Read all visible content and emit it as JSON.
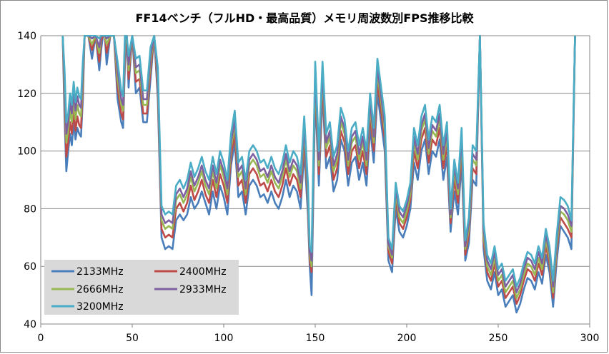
{
  "chart_data": {
    "type": "line",
    "title": "FF14ベンチ（フルHD・最高品質）メモリ周波数別FPS推移比較",
    "xlim": [
      0,
      300
    ],
    "ylim": [
      40,
      140
    ],
    "xticks": [
      0,
      50,
      100,
      150,
      200,
      250,
      300
    ],
    "yticks": [
      40,
      60,
      80,
      100,
      120,
      140
    ],
    "grid": "horizontal",
    "legend_position": "bottom-left",
    "x": [
      12,
      13,
      14,
      15,
      16,
      17,
      18,
      19,
      20,
      21,
      22,
      23,
      24,
      26,
      28,
      30,
      32,
      33,
      34,
      35,
      36,
      38,
      40,
      42,
      44,
      45,
      46,
      47,
      48,
      50,
      52,
      54,
      56,
      58,
      60,
      62,
      64,
      66,
      68,
      70,
      72,
      74,
      76,
      78,
      80,
      82,
      84,
      86,
      88,
      90,
      92,
      94,
      96,
      98,
      100,
      102,
      104,
      106,
      108,
      110,
      112,
      114,
      116,
      118,
      120,
      122,
      124,
      126,
      128,
      130,
      132,
      134,
      136,
      138,
      140,
      142,
      144,
      146,
      147,
      148,
      150,
      152,
      154,
      156,
      158,
      160,
      162,
      164,
      166,
      168,
      170,
      172,
      174,
      176,
      178,
      180,
      182,
      184,
      186,
      188,
      190,
      192,
      194,
      196,
      198,
      200,
      202,
      204,
      206,
      208,
      210,
      212,
      214,
      216,
      218,
      220,
      222,
      224,
      226,
      228,
      230,
      232,
      234,
      236,
      238,
      240,
      242,
      244,
      246,
      248,
      250,
      252,
      254,
      256,
      258,
      260,
      262,
      264,
      266,
      268,
      270,
      272,
      274,
      276,
      278,
      280,
      282,
      284,
      286,
      288,
      290,
      292
    ],
    "series": [
      {
        "name": "2133MHz",
        "color": "#4a7ebb",
        "values": [
          140,
          112,
          93,
          100,
          106,
          102,
          110,
          104,
          108,
          106,
          105,
          118,
          140,
          140,
          132,
          140,
          128,
          135,
          140,
          140,
          130,
          140,
          140,
          118,
          110,
          108,
          130,
          140,
          122,
          140,
          120,
          122,
          110,
          110,
          125,
          140,
          118,
          70,
          66,
          67,
          66,
          76,
          78,
          76,
          78,
          84,
          80,
          82,
          86,
          82,
          78,
          86,
          80,
          88,
          84,
          78,
          95,
          103,
          84,
          86,
          78,
          88,
          90,
          88,
          84,
          85,
          82,
          86,
          82,
          80,
          84,
          90,
          84,
          88,
          86,
          80,
          100,
          78,
          60,
          50,
          120,
          88,
          120,
          94,
          98,
          86,
          90,
          104,
          100,
          88,
          96,
          98,
          90,
          96,
          88,
          108,
          96,
          120,
          110,
          100,
          62,
          58,
          80,
          72,
          70,
          74,
          80,
          96,
          90,
          100,
          104,
          92,
          100,
          98,
          104,
          90,
          98,
          72,
          86,
          78,
          96,
          62,
          68,
          90,
          88,
          140,
          66,
          55,
          52,
          58,
          50,
          52,
          46,
          48,
          50,
          44,
          47,
          52,
          56,
          55,
          52,
          58,
          54,
          64,
          58,
          46,
          62,
          74,
          72,
          70,
          66,
          140
        ]
      },
      {
        "name": "2400MHz",
        "color": "#be4b48",
        "values": [
          140,
          118,
          98,
          103,
          110,
          106,
          114,
          107,
          112,
          109,
          108,
          122,
          140,
          140,
          135,
          140,
          131,
          138,
          140,
          140,
          134,
          140,
          140,
          122,
          113,
          111,
          134,
          140,
          125,
          140,
          124,
          125,
          113,
          113,
          128,
          140,
          121,
          73,
          70,
          71,
          70,
          80,
          82,
          79,
          82,
          88,
          83,
          86,
          90,
          85,
          82,
          90,
          84,
          92,
          88,
          82,
          98,
          106,
          88,
          90,
          82,
          92,
          94,
          92,
          88,
          89,
          86,
          90,
          86,
          84,
          88,
          94,
          88,
          92,
          90,
          84,
          104,
          82,
          62,
          58,
          123,
          92,
          123,
          98,
          102,
          90,
          94,
          107,
          103,
          92,
          100,
          102,
          94,
          100,
          92,
          112,
          100,
          124,
          114,
          104,
          65,
          61,
          83,
          75,
          73,
          77,
          83,
          100,
          94,
          104,
          108,
          96,
          104,
          102,
          108,
          94,
          102,
          75,
          90,
          82,
          100,
          64,
          71,
          94,
          92,
          140,
          69,
          58,
          55,
          61,
          53,
          55,
          49,
          51,
          53,
          47,
          50,
          55,
          59,
          58,
          55,
          61,
          57,
          67,
          61,
          49,
          65,
          77,
          75,
          73,
          70,
          140
        ]
      },
      {
        "name": "2666MHz",
        "color": "#98b954",
        "values": [
          140,
          122,
          103,
          107,
          114,
          110,
          118,
          111,
          116,
          113,
          112,
          125,
          140,
          140,
          137,
          140,
          134,
          140,
          140,
          140,
          137,
          140,
          140,
          125,
          116,
          114,
          137,
          140,
          128,
          140,
          127,
          128,
          116,
          116,
          131,
          140,
          124,
          76,
          73,
          74,
          73,
          83,
          85,
          82,
          85,
          91,
          86,
          89,
          93,
          88,
          85,
          93,
          87,
          95,
          91,
          85,
          101,
          109,
          91,
          93,
          85,
          95,
          97,
          95,
          91,
          92,
          89,
          93,
          89,
          87,
          91,
          97,
          91,
          95,
          93,
          87,
          107,
          84,
          64,
          60,
          126,
          95,
          126,
          101,
          105,
          93,
          97,
          110,
          106,
          95,
          103,
          105,
          97,
          103,
          95,
          115,
          103,
          127,
          117,
          107,
          67,
          63,
          85,
          77,
          75,
          79,
          85,
          103,
          97,
          107,
          111,
          99,
          107,
          105,
          111,
          97,
          105,
          77,
          93,
          85,
          103,
          66,
          73,
          97,
          95,
          140,
          71,
          60,
          57,
          63,
          55,
          57,
          51,
          53,
          55,
          49,
          52,
          57,
          61,
          60,
          57,
          63,
          59,
          69,
          63,
          51,
          67,
          79,
          78,
          76,
          72,
          140
        ]
      },
      {
        "name": "2933MHz",
        "color": "#7d60a0",
        "values": [
          140,
          125,
          106,
          110,
          117,
          113,
          121,
          114,
          119,
          116,
          115,
          128,
          140,
          140,
          139,
          140,
          136,
          140,
          140,
          140,
          139,
          140,
          140,
          128,
          118,
          116,
          139,
          140,
          130,
          140,
          129,
          130,
          118,
          118,
          133,
          140,
          126,
          78,
          75,
          76,
          75,
          85,
          87,
          84,
          87,
          93,
          88,
          91,
          95,
          90,
          87,
          95,
          89,
          97,
          93,
          87,
          103,
          111,
          93,
          95,
          87,
          97,
          99,
          97,
          93,
          94,
          91,
          95,
          91,
          89,
          93,
          99,
          93,
          97,
          95,
          89,
          109,
          86,
          65,
          62,
          128,
          97,
          128,
          103,
          107,
          95,
          99,
          112,
          108,
          97,
          105,
          107,
          99,
          105,
          97,
          117,
          105,
          129,
          119,
          109,
          68,
          64,
          87,
          79,
          77,
          81,
          87,
          105,
          99,
          109,
          113,
          101,
          109,
          107,
          113,
          99,
          107,
          78,
          95,
          87,
          105,
          67,
          75,
          99,
          97,
          140,
          73,
          62,
          59,
          65,
          57,
          59,
          53,
          55,
          57,
          51,
          54,
          59,
          63,
          62,
          59,
          65,
          61,
          71,
          65,
          53,
          69,
          81,
          80,
          78,
          74,
          140
        ]
      },
      {
        "name": "3200MHz",
        "color": "#4bacc6",
        "values": [
          140,
          128,
          110,
          113,
          120,
          116,
          124,
          117,
          122,
          119,
          118,
          131,
          140,
          140,
          140,
          140,
          139,
          140,
          140,
          140,
          140,
          140,
          140,
          131,
          121,
          119,
          140,
          140,
          133,
          140,
          132,
          133,
          121,
          121,
          136,
          140,
          129,
          81,
          78,
          79,
          78,
          88,
          90,
          87,
          90,
          96,
          91,
          94,
          98,
          93,
          90,
          98,
          92,
          100,
          96,
          90,
          106,
          114,
          96,
          98,
          90,
          100,
          102,
          100,
          96,
          97,
          94,
          98,
          94,
          92,
          96,
          102,
          96,
          100,
          98,
          92,
          112,
          89,
          67,
          65,
          131,
          100,
          131,
          106,
          110,
          98,
          102,
          115,
          111,
          100,
          108,
          110,
          102,
          108,
          100,
          120,
          108,
          132,
          122,
          112,
          70,
          66,
          89,
          81,
          79,
          83,
          89,
          108,
          102,
          112,
          116,
          104,
          112,
          110,
          116,
          102,
          110,
          80,
          97,
          89,
          108,
          69,
          77,
          102,
          100,
          140,
          75,
          64,
          61,
          67,
          59,
          61,
          55,
          57,
          59,
          53,
          56,
          61,
          65,
          64,
          61,
          67,
          63,
          73,
          67,
          55,
          71,
          84,
          83,
          81,
          76,
          140
        ]
      }
    ]
  }
}
